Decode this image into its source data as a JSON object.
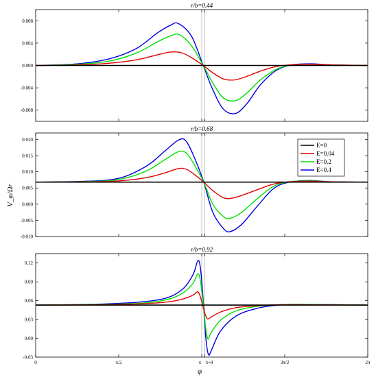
{
  "chart_data": {
    "type": "line",
    "xlabel": "φ",
    "ylabel": "V_φ/Ωr",
    "x_range": [
      0,
      6.2832
    ],
    "x_ticks": [
      {
        "value": 0,
        "label": "0"
      },
      {
        "value": 1.5708,
        "label": "π/2"
      },
      {
        "value": 3.1416,
        "label": "π"
      },
      {
        "value": 3.2,
        "label": "π+θ"
      },
      {
        "value": 4.7124,
        "label": "3π/2"
      },
      {
        "value": 6.2832,
        "label": "2π"
      }
    ],
    "vertical_reference_lines": [
      3.1416,
      3.2
    ],
    "legend": {
      "placement": "right",
      "entries": [
        {
          "label": "E=0",
          "color": "#000000"
        },
        {
          "label": "E=0.04",
          "color": "#e00000"
        },
        {
          "label": "E=0.2",
          "color": "#00e000"
        },
        {
          "label": "E=0.4",
          "color": "#0000e0"
        }
      ]
    },
    "panels": [
      {
        "title": "r/b=0.44",
        "ylim": [
          -0.01,
          0.01
        ],
        "y_ticks": [
          {
            "value": 0.008,
            "label": "0.008"
          },
          {
            "value": 0.004,
            "label": "0.004"
          },
          {
            "value": 0.0,
            "label": "0.000"
          },
          {
            "value": -0.004,
            "label": "-0.004"
          },
          {
            "value": -0.008,
            "label": "-0.008"
          }
        ],
        "series": [
          {
            "name": "E=0",
            "color": "#000000",
            "points": [
              [
                0.0,
                0.0
              ],
              [
                6.2832,
                0.0
              ]
            ]
          },
          {
            "name": "E=0.04",
            "color": "#e00000",
            "points": [
              [
                0.0,
                0.0
              ],
              [
                0.8,
                0.0001
              ],
              [
                1.4,
                0.0004
              ],
              [
                1.9,
                0.001
              ],
              [
                2.3,
                0.0019
              ],
              [
                2.55,
                0.0024
              ],
              [
                2.75,
                0.0023
              ],
              [
                2.95,
                0.0014
              ],
              [
                3.17,
                0.0
              ],
              [
                3.35,
                -0.0013
              ],
              [
                3.55,
                -0.0024
              ],
              [
                3.75,
                -0.0026
              ],
              [
                3.95,
                -0.0021
              ],
              [
                4.2,
                -0.0012
              ],
              [
                4.5,
                -0.0003
              ],
              [
                4.8,
                0.0001
              ],
              [
                5.2,
                0.0002
              ],
              [
                5.6,
                0.0001
              ],
              [
                6.2832,
                0.0
              ]
            ]
          },
          {
            "name": "E=0.2",
            "color": "#00e000",
            "points": [
              [
                0.0,
                0.0
              ],
              [
                0.8,
                0.0002
              ],
              [
                1.4,
                0.0008
              ],
              [
                1.9,
                0.0022
              ],
              [
                2.3,
                0.0042
              ],
              [
                2.55,
                0.0053
              ],
              [
                2.72,
                0.0055
              ],
              [
                2.95,
                0.0035
              ],
              [
                3.17,
                0.0
              ],
              [
                3.35,
                -0.0031
              ],
              [
                3.55,
                -0.0058
              ],
              [
                3.78,
                -0.0063
              ],
              [
                4.0,
                -0.0049
              ],
              [
                4.25,
                -0.0026
              ],
              [
                4.55,
                -0.0007
              ],
              [
                4.85,
                0.0001
              ],
              [
                5.2,
                0.0002
              ],
              [
                5.6,
                0.0001
              ],
              [
                6.2832,
                0.0
              ]
            ]
          },
          {
            "name": "E=0.4",
            "color": "#0000e0",
            "points": [
              [
                0.0,
                0.0
              ],
              [
                0.8,
                0.0003
              ],
              [
                1.4,
                0.0012
              ],
              [
                1.9,
                0.003
              ],
              [
                2.3,
                0.0058
              ],
              [
                2.55,
                0.0072
              ],
              [
                2.7,
                0.0075
              ],
              [
                2.95,
                0.0052
              ],
              [
                3.17,
                0.0
              ],
              [
                3.35,
                -0.0043
              ],
              [
                3.55,
                -0.0078
              ],
              [
                3.78,
                -0.0086
              ],
              [
                4.0,
                -0.0068
              ],
              [
                4.25,
                -0.0035
              ],
              [
                4.55,
                -0.0009
              ],
              [
                4.85,
                0.0001
              ],
              [
                5.2,
                0.0003
              ],
              [
                5.6,
                0.0001
              ],
              [
                6.2832,
                0.0
              ]
            ]
          }
        ]
      },
      {
        "title": "r/b=0.68",
        "ylim": [
          -0.01,
          0.022
        ],
        "y_ticks": [
          {
            "value": 0.02,
            "label": "0.020"
          },
          {
            "value": 0.015,
            "label": "0.015"
          },
          {
            "value": 0.01,
            "label": "0.010"
          },
          {
            "value": 0.005,
            "label": "0.005"
          },
          {
            "value": 0.0,
            "label": "0.000"
          },
          {
            "value": -0.005,
            "label": "-0.005"
          },
          {
            "value": -0.01,
            "label": "-0.010"
          }
        ],
        "series": [
          {
            "name": "E=0",
            "color": "#000000",
            "points": [
              [
                0.0,
                0.0068
              ],
              [
                6.2832,
                0.0068
              ]
            ]
          },
          {
            "name": "E=0.04",
            "color": "#e00000",
            "points": [
              [
                0.0,
                0.0068
              ],
              [
                1.0,
                0.0069
              ],
              [
                1.6,
                0.0072
              ],
              [
                2.1,
                0.0082
              ],
              [
                2.45,
                0.0097
              ],
              [
                2.7,
                0.011
              ],
              [
                2.85,
                0.0108
              ],
              [
                3.0,
                0.0092
              ],
              [
                3.18,
                0.0068
              ],
              [
                3.35,
                0.0042
              ],
              [
                3.55,
                0.002
              ],
              [
                3.7,
                0.0018
              ],
              [
                3.9,
                0.0027
              ],
              [
                4.2,
                0.0045
              ],
              [
                4.5,
                0.0062
              ],
              [
                4.8,
                0.0069
              ],
              [
                5.2,
                0.0071
              ],
              [
                5.6,
                0.0069
              ],
              [
                6.2832,
                0.0068
              ]
            ]
          },
          {
            "name": "E=0.2",
            "color": "#00e000",
            "points": [
              [
                0.0,
                0.0068
              ],
              [
                1.0,
                0.007
              ],
              [
                1.6,
                0.0077
              ],
              [
                2.1,
                0.0103
              ],
              [
                2.45,
                0.0138
              ],
              [
                2.7,
                0.0162
              ],
              [
                2.85,
                0.0158
              ],
              [
                3.0,
                0.0122
              ],
              [
                3.18,
                0.0068
              ],
              [
                3.35,
                0.0
              ],
              [
                3.55,
                -0.0038
              ],
              [
                3.68,
                -0.0044
              ],
              [
                3.9,
                -0.0025
              ],
              [
                4.2,
                0.0018
              ],
              [
                4.5,
                0.0055
              ],
              [
                4.8,
                0.0069
              ],
              [
                5.2,
                0.0072
              ],
              [
                5.6,
                0.0069
              ],
              [
                6.2832,
                0.0068
              ]
            ]
          },
          {
            "name": "E=0.4",
            "color": "#0000e0",
            "points": [
              [
                0.0,
                0.0068
              ],
              [
                1.0,
                0.0071
              ],
              [
                1.6,
                0.0081
              ],
              [
                2.1,
                0.0118
              ],
              [
                2.45,
                0.0165
              ],
              [
                2.7,
                0.0198
              ],
              [
                2.84,
                0.0196
              ],
              [
                3.0,
                0.0145
              ],
              [
                3.18,
                0.0068
              ],
              [
                3.35,
                -0.0025
              ],
              [
                3.55,
                -0.0075
              ],
              [
                3.68,
                -0.0085
              ],
              [
                3.9,
                -0.0062
              ],
              [
                4.2,
                -0.0005
              ],
              [
                4.5,
                0.0048
              ],
              [
                4.8,
                0.0068
              ],
              [
                5.2,
                0.0073
              ],
              [
                5.6,
                0.0069
              ],
              [
                6.2832,
                0.0068
              ]
            ]
          }
        ]
      },
      {
        "title": "r/b=0.92",
        "ylim": [
          -0.03,
          0.135
        ],
        "y_ticks": [
          {
            "value": 0.12,
            "label": "0.12"
          },
          {
            "value": 0.09,
            "label": "0.09"
          },
          {
            "value": 0.06,
            "label": "0.06"
          },
          {
            "value": 0.03,
            "label": "0.03"
          },
          {
            "value": 0.0,
            "label": "0.00"
          },
          {
            "value": -0.03,
            "label": "-0.03"
          }
        ],
        "series": [
          {
            "name": "E=0",
            "color": "#000000",
            "points": [
              [
                0.0,
                0.053
              ],
              [
                6.2832,
                0.053
              ]
            ]
          },
          {
            "name": "E=0.04",
            "color": "#e00000",
            "points": [
              [
                0.0,
                0.053
              ],
              [
                1.2,
                0.0535
              ],
              [
                2.0,
                0.055
              ],
              [
                2.5,
                0.058
              ],
              [
                2.8,
                0.063
              ],
              [
                2.98,
                0.069
              ],
              [
                3.06,
                0.074
              ],
              [
                3.1,
                0.07
              ],
              [
                3.15,
                0.056
              ],
              [
                3.2,
                0.04
              ],
              [
                3.25,
                0.031
              ],
              [
                3.32,
                0.034
              ],
              [
                3.5,
                0.042
              ],
              [
                3.8,
                0.049
              ],
              [
                4.2,
                0.052
              ],
              [
                4.6,
                0.0535
              ],
              [
                5.0,
                0.0535
              ],
              [
                6.2832,
                0.053
              ]
            ]
          },
          {
            "name": "E=0.2",
            "color": "#00e000",
            "points": [
              [
                0.0,
                0.053
              ],
              [
                1.2,
                0.054
              ],
              [
                2.0,
                0.056
              ],
              [
                2.5,
                0.062
              ],
              [
                2.8,
                0.073
              ],
              [
                2.98,
                0.088
              ],
              [
                3.07,
                0.103
              ],
              [
                3.12,
                0.09
              ],
              [
                3.17,
                0.055
              ],
              [
                3.22,
                0.015
              ],
              [
                3.26,
                -0.001
              ],
              [
                3.32,
                0.009
              ],
              [
                3.5,
                0.029
              ],
              [
                3.8,
                0.044
              ],
              [
                4.2,
                0.051
              ],
              [
                4.6,
                0.0535
              ],
              [
                5.0,
                0.054
              ],
              [
                6.2832,
                0.053
              ]
            ]
          },
          {
            "name": "E=0.4",
            "color": "#0000e0",
            "points": [
              [
                0.0,
                0.053
              ],
              [
                1.2,
                0.0545
              ],
              [
                2.0,
                0.058
              ],
              [
                2.5,
                0.065
              ],
              [
                2.8,
                0.08
              ],
              [
                2.98,
                0.102
              ],
              [
                3.07,
                0.124
              ],
              [
                3.12,
                0.11
              ],
              [
                3.17,
                0.06
              ],
              [
                3.22,
                0.0
              ],
              [
                3.27,
                -0.026
              ],
              [
                3.33,
                -0.018
              ],
              [
                3.5,
                0.012
              ],
              [
                3.8,
                0.036
              ],
              [
                4.2,
                0.048
              ],
              [
                4.6,
                0.053
              ],
              [
                5.0,
                0.054
              ],
              [
                6.2832,
                0.053
              ]
            ]
          }
        ]
      }
    ]
  }
}
